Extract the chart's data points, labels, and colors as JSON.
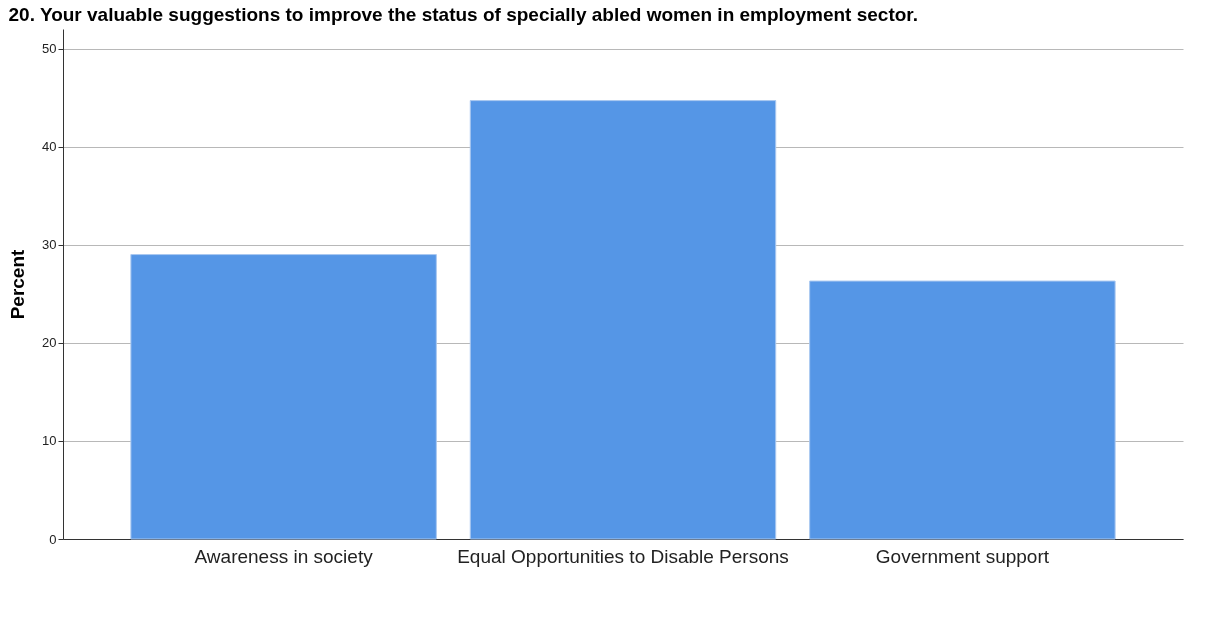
{
  "chart_data": {
    "type": "bar",
    "title": "20. Your valuable suggestions to improve the status of specially abled women in employment sector.",
    "ylabel": "Percent",
    "categories": [
      "Awareness in society",
      "Equal Opportunities to Disable Persons",
      "Government support"
    ],
    "values": [
      29.0,
      44.7,
      26.3
    ],
    "color": "#5596e6",
    "ylim": [
      0,
      52
    ],
    "yticks": [
      0,
      10,
      20,
      30,
      40,
      50
    ],
    "grid": "y"
  }
}
